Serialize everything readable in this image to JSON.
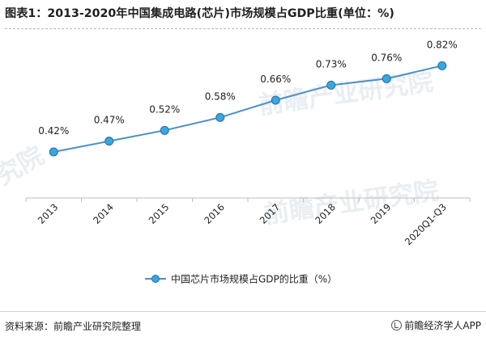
{
  "header": {
    "title": "图表1：2013-2020年中国集成电路(芯片)市场规模占GDP比重(单位：%)"
  },
  "footer": {
    "source": "资料来源：前瞻产业研究院整理",
    "brand": "前瞻经济学人APP"
  },
  "watermarks": [
    "前瞻产业研究院",
    "前瞻产业研究院",
    "究院"
  ],
  "colors": {
    "line": "#4a8fc9",
    "marker_fill": "#3aa6e0",
    "marker_stroke": "#1f6fa8",
    "axis": "#bfbfbf",
    "text": "#222222"
  },
  "chart_data": {
    "type": "line",
    "title": "图表1：2013-2020年中国集成电路(芯片)市场规模占GDP比重(单位：%)",
    "categories": [
      "2013",
      "2014",
      "2015",
      "2016",
      "2017",
      "2018",
      "2019",
      "2020Q1-Q3"
    ],
    "series": [
      {
        "name": "中国芯片市场规模占GDP的比重（%）",
        "values": [
          0.42,
          0.47,
          0.52,
          0.58,
          0.66,
          0.73,
          0.76,
          0.82
        ],
        "labels": [
          "0.42%",
          "0.47%",
          "0.52%",
          "0.58%",
          "0.66%",
          "0.73%",
          "0.76%",
          "0.82%"
        ]
      }
    ],
    "ylim": [
      0.3,
      0.9
    ],
    "grid": false,
    "legend": "bottom-center"
  }
}
